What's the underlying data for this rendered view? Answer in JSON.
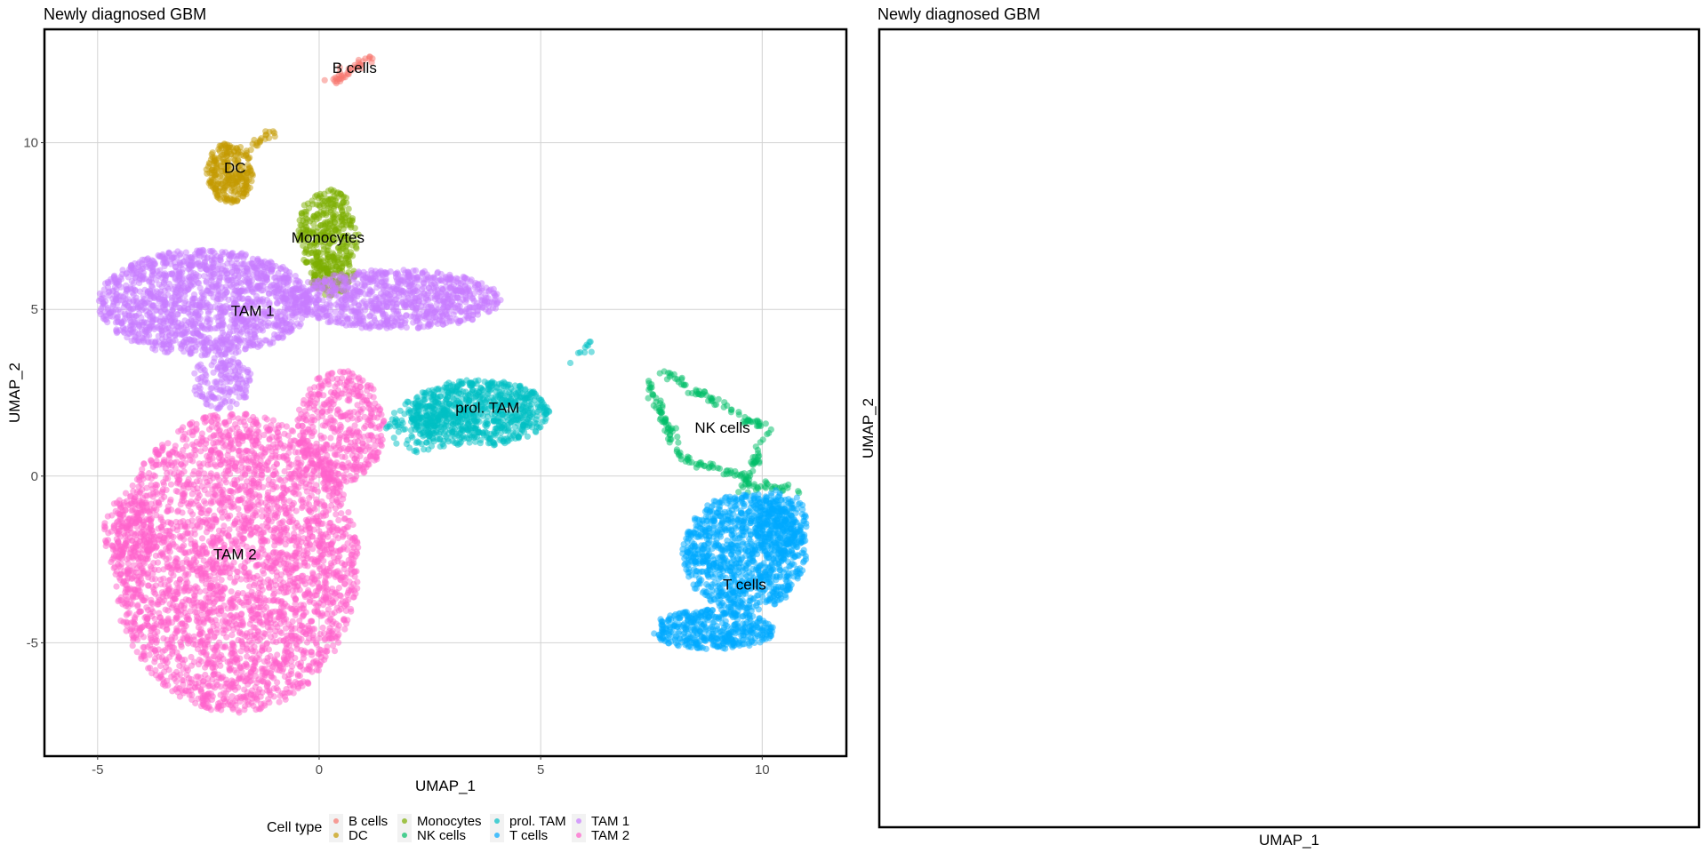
{
  "panels": [
    {
      "title": "Newly diagnosed GBM",
      "xlabel": "UMAP_1",
      "ylabel": "UMAP_2"
    },
    {
      "title": "Newly diagnosed GBM",
      "xlabel": "UMAP_1",
      "ylabel": "UMAP_2"
    }
  ],
  "legend": {
    "title": "Cell type",
    "placement": "bottom",
    "entries": [
      {
        "name": "B cells",
        "color": "#F8766D"
      },
      {
        "name": "DC",
        "color": "#C49A00"
      },
      {
        "name": "Monocytes",
        "color": "#7CAE00"
      },
      {
        "name": "NK cells",
        "color": "#00BE67"
      },
      {
        "name": "prol. TAM",
        "color": "#00BFC4"
      },
      {
        "name": "T cells",
        "color": "#00A9FF"
      },
      {
        "name": "TAM 1",
        "color": "#C77CFF"
      },
      {
        "name": "TAM 2",
        "color": "#FF61CC"
      }
    ]
  },
  "chart_data": [
    {
      "type": "scatter",
      "title": "Newly diagnosed GBM",
      "xlabel": "UMAP_1",
      "ylabel": "UMAP_2",
      "xlim": [
        -6.2,
        11.9
      ],
      "ylim": [
        -8.4,
        13.4
      ],
      "xticks": [
        -5,
        0,
        5,
        10
      ],
      "yticks": [
        -5,
        0,
        5,
        10
      ],
      "grid": true,
      "legend": "bottom",
      "clusters": [
        {
          "name": "B cells",
          "color": "#F8766D",
          "label_pos": [
            0.8,
            12.1
          ],
          "regions": [
            {
              "shape": "line",
              "from": [
                0.3,
                11.8
              ],
              "to": [
                1.2,
                12.6
              ],
              "n": 40
            }
          ]
        },
        {
          "name": "DC",
          "color": "#C49A00",
          "label_pos": [
            -1.9,
            9.1
          ],
          "regions": [
            {
              "shape": "ellipse",
              "center": [
                -2.0,
                9.1
              ],
              "r": [
                0.55,
                0.9
              ],
              "n": 260
            },
            {
              "shape": "line",
              "from": [
                -1.6,
                9.8
              ],
              "to": [
                -1.0,
                10.3
              ],
              "n": 20
            }
          ]
        },
        {
          "name": "Monocytes",
          "color": "#7CAE00",
          "label_pos": [
            0.2,
            7.0
          ],
          "regions": [
            {
              "shape": "ellipse",
              "center": [
                0.2,
                7.3
              ],
              "r": [
                0.7,
                1.3
              ],
              "n": 320
            },
            {
              "shape": "ellipse",
              "center": [
                0.3,
                6.0
              ],
              "r": [
                0.5,
                0.6
              ],
              "n": 120
            }
          ]
        },
        {
          "name": "TAM 1",
          "color": "#C77CFF",
          "label_pos": [
            -1.5,
            4.8
          ],
          "regions": [
            {
              "shape": "ellipse",
              "center": [
                -2.6,
                5.2
              ],
              "r": [
                2.4,
                1.6
              ],
              "n": 1500
            },
            {
              "shape": "ellipse",
              "center": [
                1.7,
                5.3
              ],
              "r": [
                2.4,
                0.9
              ],
              "n": 900
            },
            {
              "shape": "ellipse",
              "center": [
                -2.2,
                2.8
              ],
              "r": [
                0.7,
                0.8
              ],
              "n": 160
            }
          ]
        },
        {
          "name": "TAM 2",
          "color": "#FF61CC",
          "label_pos": [
            -1.9,
            -2.5
          ],
          "regions": [
            {
              "shape": "ellipse",
              "center": [
                -1.9,
                -2.6
              ],
              "r": [
                2.8,
                4.5
              ],
              "n": 3200
            },
            {
              "shape": "ellipse",
              "center": [
                0.5,
                1.5
              ],
              "r": [
                1.0,
                1.7
              ],
              "n": 450
            },
            {
              "shape": "ellipse",
              "center": [
                -4.3,
                -1.8
              ],
              "r": [
                0.6,
                1.2
              ],
              "n": 150
            }
          ]
        },
        {
          "name": "prol. TAM",
          "color": "#00BFC4",
          "label_pos": [
            3.8,
            1.9
          ],
          "regions": [
            {
              "shape": "ellipse",
              "center": [
                3.6,
                1.9
              ],
              "r": [
                1.6,
                1.0
              ],
              "n": 750
            },
            {
              "shape": "ellipse",
              "center": [
                2.3,
                1.5
              ],
              "r": [
                0.8,
                0.8
              ],
              "n": 120
            },
            {
              "shape": "line",
              "from": [
                5.6,
                3.5
              ],
              "to": [
                6.2,
                4.0
              ],
              "n": 10
            }
          ]
        },
        {
          "name": "NK cells",
          "color": "#00BE67",
          "label_pos": [
            9.1,
            1.3
          ],
          "regions": [
            {
              "shape": "line",
              "from": [
                7.4,
                2.8
              ],
              "to": [
                8.2,
                0.5
              ],
              "n": 60
            },
            {
              "shape": "line",
              "from": [
                8.2,
                0.5
              ],
              "to": [
                9.7,
                0.0
              ],
              "n": 40
            },
            {
              "shape": "line",
              "from": [
                7.8,
                3.1
              ],
              "to": [
                10.1,
                1.4
              ],
              "n": 70
            },
            {
              "shape": "line",
              "from": [
                10.1,
                1.4
              ],
              "to": [
                9.6,
                -0.4
              ],
              "n": 40
            },
            {
              "shape": "line",
              "from": [
                9.8,
                -0.3
              ],
              "to": [
                10.9,
                -0.4
              ],
              "n": 25
            }
          ]
        },
        {
          "name": "T cells",
          "color": "#00A9FF",
          "label_pos": [
            9.6,
            -3.4
          ],
          "regions": [
            {
              "shape": "ellipse",
              "center": [
                9.6,
                -2.3
              ],
              "r": [
                1.4,
                1.8
              ],
              "n": 1000
            },
            {
              "shape": "ellipse",
              "center": [
                8.9,
                -4.6
              ],
              "r": [
                1.4,
                0.6
              ],
              "n": 420
            },
            {
              "shape": "ellipse",
              "center": [
                10.4,
                -1.4
              ],
              "r": [
                0.6,
                1.0
              ],
              "n": 200
            }
          ]
        }
      ]
    },
    {
      "type": "scatter",
      "title": "Newly diagnosed GBM",
      "xlabel": "UMAP_1",
      "ylabel": "UMAP_2",
      "clusters": []
    }
  ]
}
